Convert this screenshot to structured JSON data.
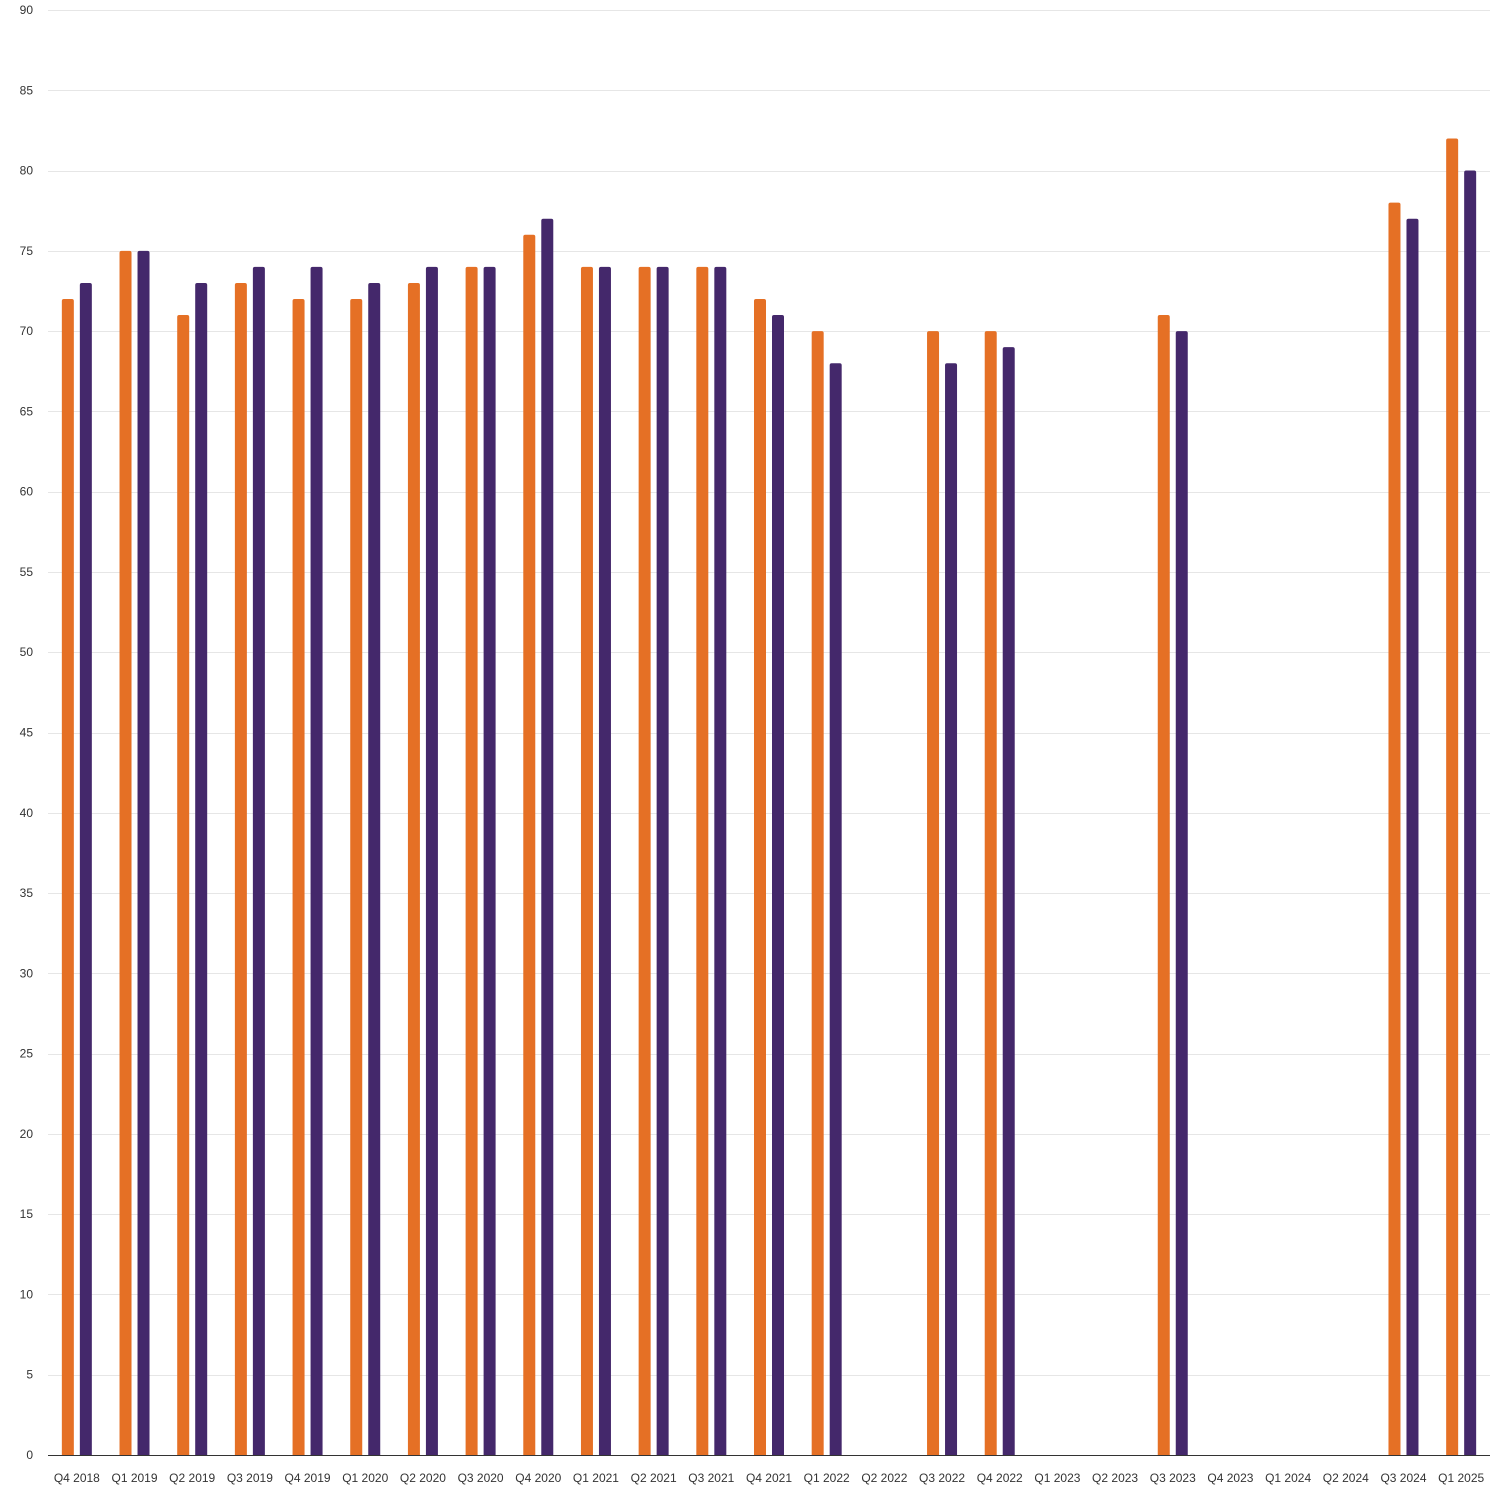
{
  "chart_data": {
    "type": "bar",
    "categories": [
      "Q4 2018",
      "Q1 2019",
      "Q2 2019",
      "Q3 2019",
      "Q4 2019",
      "Q1 2020",
      "Q2 2020",
      "Q3 2020",
      "Q4 2020",
      "Q1 2021",
      "Q2 2021",
      "Q3 2021",
      "Q4 2021",
      "Q1 2022",
      "Q2 2022",
      "Q3 2022",
      "Q4 2022",
      "Q1 2023",
      "Q2 2023",
      "Q3 2023",
      "Q4 2023",
      "Q1 2024",
      "Q2 2024",
      "Q3 2024",
      "Q1 2025"
    ],
    "series": [
      {
        "color": "#e57025",
        "values": [
          72,
          75,
          71,
          73,
          72,
          72,
          73,
          74,
          76,
          74,
          74,
          74,
          72,
          70,
          null,
          70,
          70,
          null,
          null,
          71,
          null,
          null,
          null,
          78,
          82
        ]
      },
      {
        "color": "#44286b",
        "values": [
          73,
          75,
          73,
          74,
          74,
          73,
          74,
          74,
          77,
          74,
          74,
          74,
          71,
          68,
          null,
          68,
          69,
          null,
          null,
          70,
          null,
          null,
          null,
          77,
          80
        ]
      }
    ],
    "title": "",
    "xlabel": "",
    "ylabel": "",
    "ylim": [
      0,
      90
    ],
    "yticks": [
      0,
      5,
      10,
      15,
      20,
      25,
      30,
      35,
      40,
      45,
      50,
      55,
      60,
      65,
      70,
      75,
      80,
      85,
      90
    ],
    "grid": true,
    "legend": "none"
  }
}
